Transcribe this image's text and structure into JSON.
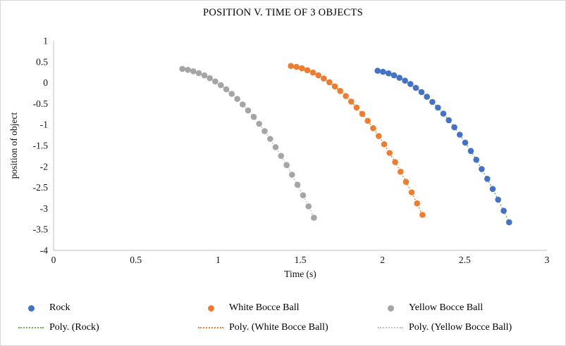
{
  "title": "POSITION V. TIME OF 3 OBJECTS",
  "chart_data": {
    "type": "scatter",
    "title": "POSITION V. TIME OF 3 OBJECTS",
    "xlabel": "Time (s)",
    "ylabel": "position of object",
    "xlim": [
      0,
      3
    ],
    "ylim": [
      -4,
      1
    ],
    "xticks": [
      0,
      0.5,
      1,
      1.5,
      2,
      2.5,
      3
    ],
    "yticks": [
      1,
      0.5,
      0,
      -0.5,
      -1,
      -1.5,
      -2,
      -2.5,
      -3,
      -3.5,
      -4
    ],
    "grid": false,
    "axis_color": "#bfbfbf",
    "legend_position": "bottom",
    "series": [
      {
        "name": "Rock",
        "color": "#4472C4",
        "trendline": {
          "label": "Poly. (Rock)",
          "color": "#70AD47"
        },
        "points": [
          [
            1.97,
            0.285
          ],
          [
            2.003,
            0.26
          ],
          [
            2.037,
            0.223
          ],
          [
            2.07,
            0.176
          ],
          [
            2.103,
            0.118
          ],
          [
            2.137,
            0.049
          ],
          [
            2.17,
            -0.031
          ],
          [
            2.203,
            -0.122
          ],
          [
            2.237,
            -0.223
          ],
          [
            2.27,
            -0.336
          ],
          [
            2.303,
            -0.459
          ],
          [
            2.337,
            -0.594
          ],
          [
            2.37,
            -0.739
          ],
          [
            2.403,
            -0.895
          ],
          [
            2.437,
            -1.062
          ],
          [
            2.47,
            -1.24
          ],
          [
            2.503,
            -1.429
          ],
          [
            2.537,
            -1.629
          ],
          [
            2.57,
            -1.839
          ],
          [
            2.603,
            -2.06
          ],
          [
            2.637,
            -2.293
          ],
          [
            2.67,
            -2.536
          ],
          [
            2.703,
            -2.79
          ],
          [
            2.737,
            -3.055
          ],
          [
            2.77,
            -3.331
          ]
        ]
      },
      {
        "name": "White Bocce Ball",
        "color": "#ED7D31",
        "trendline": {
          "label": "Poly. (White Bocce Ball)",
          "color": "#ED7D31"
        },
        "points": [
          [
            1.443,
            0.4
          ],
          [
            1.477,
            0.377
          ],
          [
            1.51,
            0.344
          ],
          [
            1.543,
            0.299
          ],
          [
            1.577,
            0.244
          ],
          [
            1.61,
            0.177
          ],
          [
            1.643,
            0.1
          ],
          [
            1.677,
            0.012
          ],
          [
            1.71,
            -0.087
          ],
          [
            1.743,
            -0.197
          ],
          [
            1.777,
            -0.318
          ],
          [
            1.81,
            -0.449
          ],
          [
            1.843,
            -0.592
          ],
          [
            1.877,
            -0.745
          ],
          [
            1.91,
            -0.91
          ],
          [
            1.943,
            -1.085
          ],
          [
            1.977,
            -1.271
          ],
          [
            2.01,
            -1.468
          ],
          [
            2.043,
            -1.676
          ],
          [
            2.077,
            -1.895
          ],
          [
            2.11,
            -2.124
          ],
          [
            2.143,
            -2.365
          ],
          [
            2.177,
            -2.616
          ],
          [
            2.21,
            -2.879
          ],
          [
            2.243,
            -3.152
          ]
        ]
      },
      {
        "name": "Yellow Bocce Ball",
        "color": "#A5A5A5",
        "trendline": {
          "label": "Poly. (Yellow Bocce Ball)",
          "color": "#BFBFBF"
        },
        "points": [
          [
            0.783,
            0.33
          ],
          [
            0.817,
            0.307
          ],
          [
            0.85,
            0.274
          ],
          [
            0.883,
            0.229
          ],
          [
            0.917,
            0.174
          ],
          [
            0.95,
            0.107
          ],
          [
            0.983,
            0.03
          ],
          [
            1.017,
            -0.058
          ],
          [
            1.05,
            -0.157
          ],
          [
            1.083,
            -0.267
          ],
          [
            1.117,
            -0.388
          ],
          [
            1.15,
            -0.519
          ],
          [
            1.183,
            -0.662
          ],
          [
            1.217,
            -0.815
          ],
          [
            1.25,
            -0.98
          ],
          [
            1.283,
            -1.155
          ],
          [
            1.317,
            -1.341
          ],
          [
            1.35,
            -1.538
          ],
          [
            1.383,
            -1.746
          ],
          [
            1.417,
            -1.965
          ],
          [
            1.45,
            -2.194
          ],
          [
            1.483,
            -2.435
          ],
          [
            1.517,
            -2.686
          ],
          [
            1.55,
            -2.949
          ],
          [
            1.583,
            -3.222
          ]
        ]
      }
    ]
  }
}
